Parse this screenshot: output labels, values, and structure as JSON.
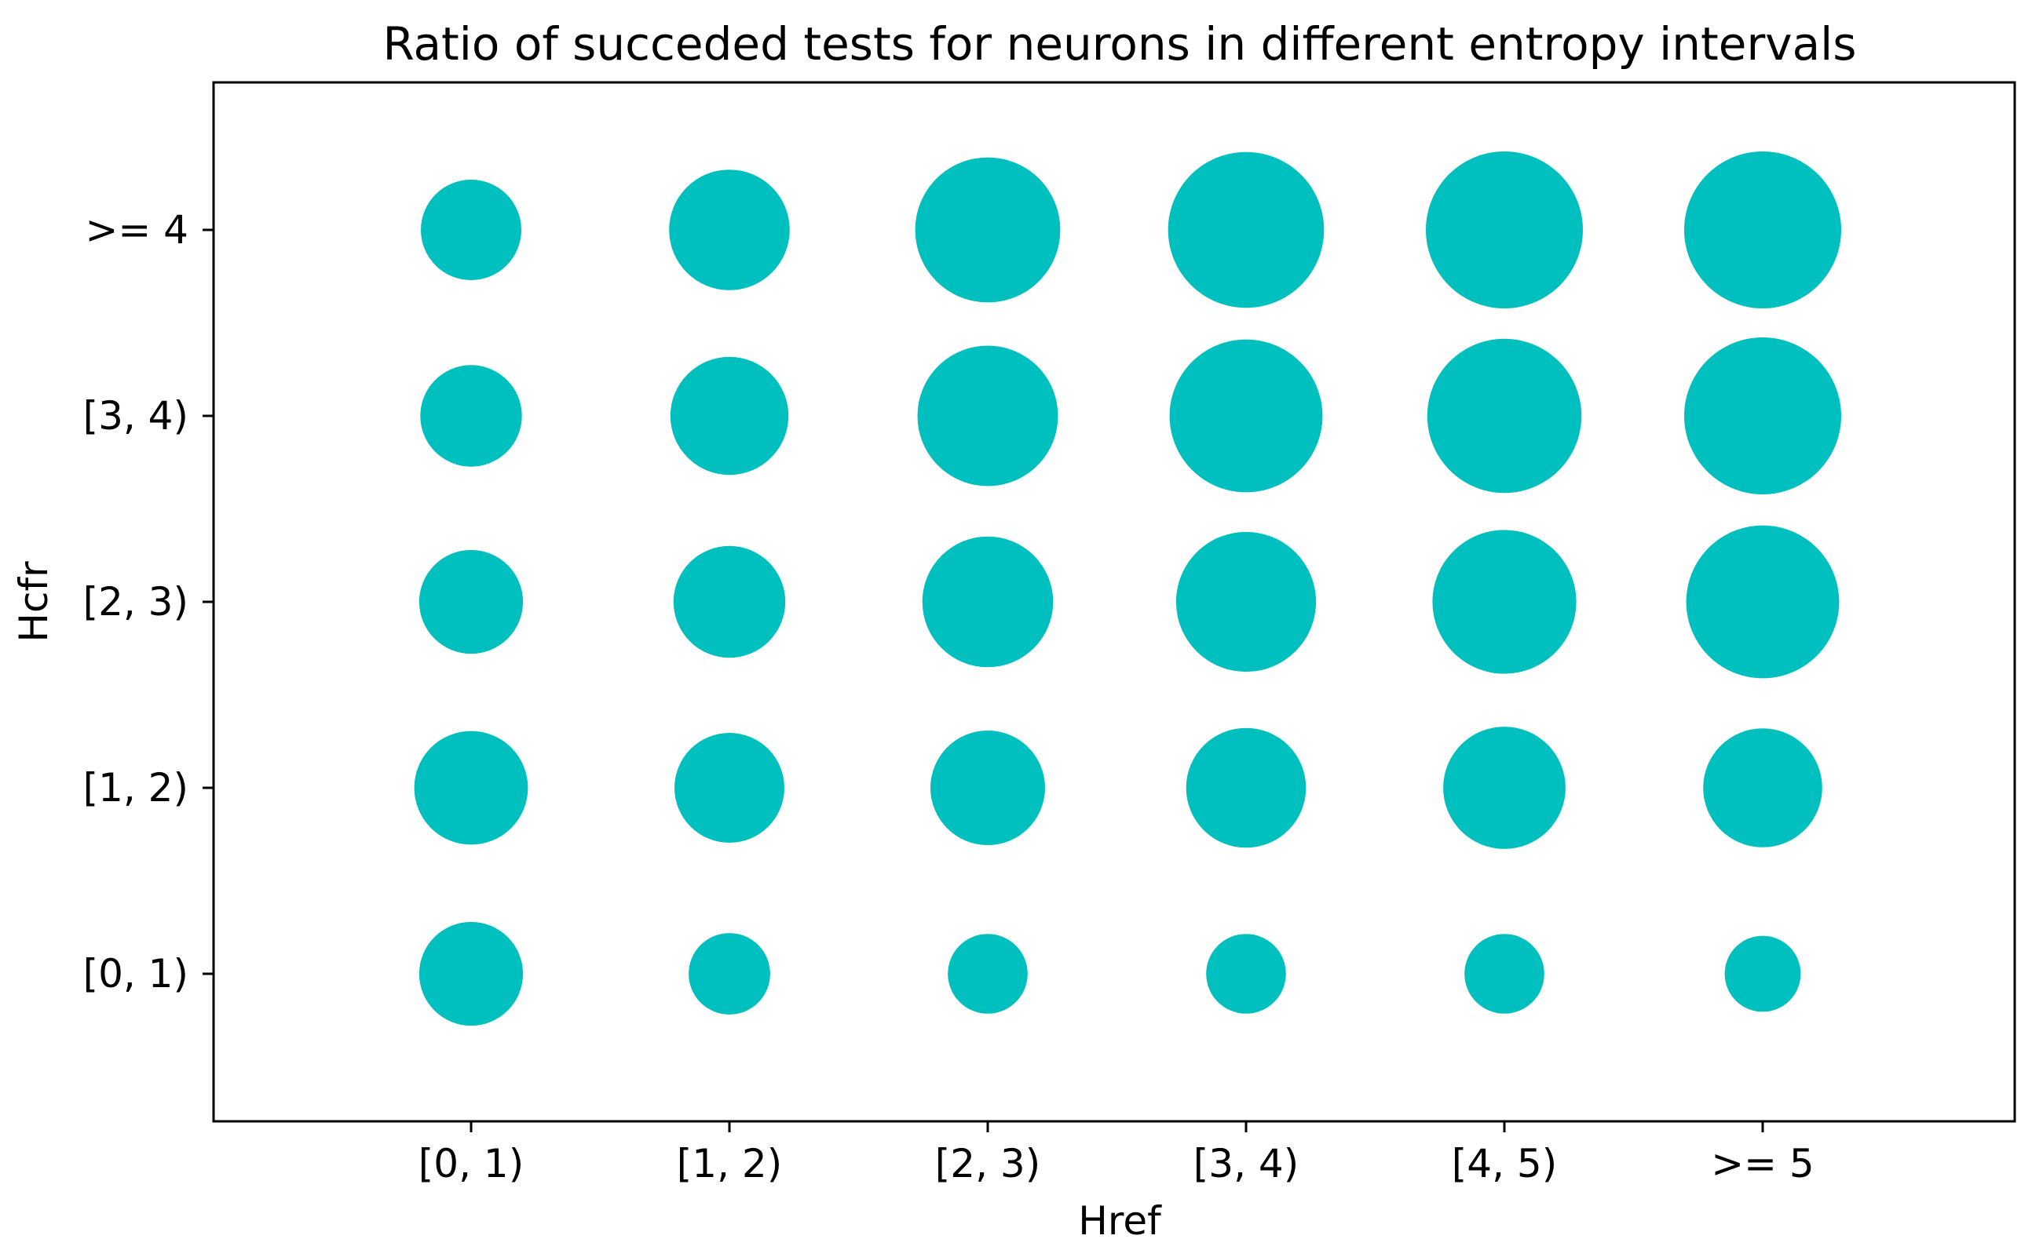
{
  "chart_data": {
    "type": "scatter",
    "title": "Ratio of succeded tests for neurons in different entropy intervals",
    "xlabel": "Href",
    "ylabel": "Hcfr",
    "x_categories": [
      "[0, 1)",
      "[1, 2)",
      "[2, 3)",
      "[3, 4)",
      "[4, 5)",
      ">= 5"
    ],
    "y_categories": [
      "[0, 1)",
      "[1, 2)",
      "[2, 3)",
      "[3, 4)",
      ">= 4"
    ],
    "color": "#00BFBF",
    "grid": false,
    "legend": "none",
    "points": [
      {
        "x": "[0, 1)",
        "y": "[0, 1)",
        "ratio": 0.28
      },
      {
        "x": "[1, 2)",
        "y": "[0, 1)",
        "ratio": 0.11
      },
      {
        "x": "[2, 3)",
        "y": "[0, 1)",
        "ratio": 0.1
      },
      {
        "x": "[3, 4)",
        "y": "[0, 1)",
        "ratio": 0.1
      },
      {
        "x": "[4, 5)",
        "y": "[0, 1)",
        "ratio": 0.1
      },
      {
        "x": ">= 5",
        "y": "[0, 1)",
        "ratio": 0.08
      },
      {
        "x": "[0, 1)",
        "y": "[1, 2)",
        "ratio": 0.38
      },
      {
        "x": "[1, 2)",
        "y": "[1, 2)",
        "ratio": 0.34
      },
      {
        "x": "[2, 3)",
        "y": "[1, 2)",
        "ratio": 0.39
      },
      {
        "x": "[3, 4)",
        "y": "[1, 2)",
        "ratio": 0.45
      },
      {
        "x": "[4, 5)",
        "y": "[1, 2)",
        "ratio": 0.48
      },
      {
        "x": ">= 5",
        "y": "[1, 2)",
        "ratio": 0.44
      },
      {
        "x": "[0, 1)",
        "y": "[2, 3)",
        "ratio": 0.28
      },
      {
        "x": "[1, 2)",
        "y": "[2, 3)",
        "ratio": 0.36
      },
      {
        "x": "[2, 3)",
        "y": "[2, 3)",
        "ratio": 0.59
      },
      {
        "x": "[3, 4)",
        "y": "[2, 3)",
        "ratio": 0.72
      },
      {
        "x": "[4, 5)",
        "y": "[2, 3)",
        "ratio": 0.78
      },
      {
        "x": ">= 5",
        "y": "[2, 3)",
        "ratio": 0.93
      },
      {
        "x": "[0, 1)",
        "y": "[3, 4)",
        "ratio": 0.26
      },
      {
        "x": "[1, 2)",
        "y": "[3, 4)",
        "ratio": 0.43
      },
      {
        "x": "[2, 3)",
        "y": "[3, 4)",
        "ratio": 0.73
      },
      {
        "x": "[3, 4)",
        "y": "[3, 4)",
        "ratio": 0.93
      },
      {
        "x": "[4, 5)",
        "y": "[3, 4)",
        "ratio": 0.95
      },
      {
        "x": ">= 5",
        "y": "[3, 4)",
        "ratio": 1.0
      },
      {
        "x": "[0, 1)",
        "y": ">= 4",
        "ratio": 0.25
      },
      {
        "x": "[1, 2)",
        "y": ">= 4",
        "ratio": 0.46
      },
      {
        "x": "[2, 3)",
        "y": ">= 4",
        "ratio": 0.8
      },
      {
        "x": "[3, 4)",
        "y": ">= 4",
        "ratio": 0.98
      },
      {
        "x": "[4, 5)",
        "y": ">= 4",
        "ratio": 1.0
      },
      {
        "x": ">= 5",
        "y": ">= 4",
        "ratio": 1.0
      }
    ]
  }
}
